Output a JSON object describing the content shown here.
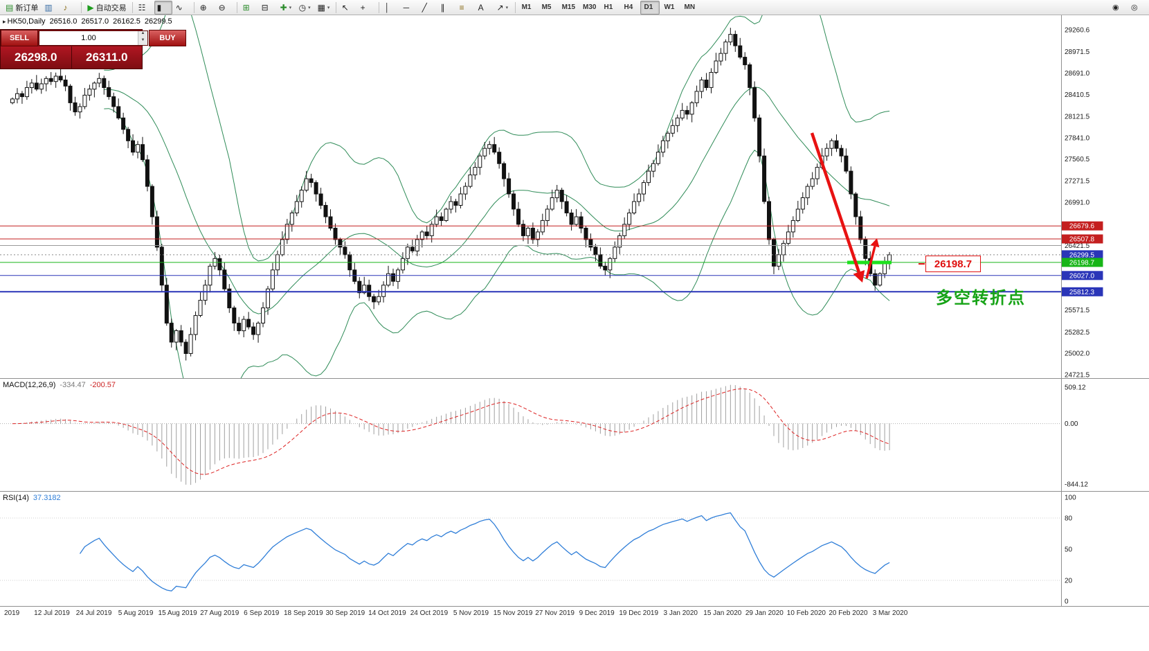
{
  "toolbar": {
    "items": [
      {
        "name": "new-order",
        "glyph": "▤",
        "color": "#2c8c2c",
        "label": "新订单"
      },
      {
        "name": "chart-profiles",
        "glyph": "▥",
        "color": "#3a6ea5"
      },
      {
        "name": "alerts",
        "glyph": "♪",
        "color": "#8a6d1a"
      },
      {
        "type": "sep"
      },
      {
        "name": "auto-trading",
        "glyph": "▶",
        "color": "#1f9d1f",
        "label": "自动交易"
      },
      {
        "type": "sep"
      },
      {
        "name": "bar-chart",
        "glyph": "☷"
      },
      {
        "name": "candlestick-chart",
        "glyph": "▮",
        "active": true
      },
      {
        "name": "line-chart",
        "glyph": "∿"
      },
      {
        "type": "sep"
      },
      {
        "name": "zoom-in",
        "glyph": "⊕"
      },
      {
        "name": "zoom-out",
        "glyph": "⊖"
      },
      {
        "type": "sep"
      },
      {
        "name": "tile-windows",
        "glyph": "⊞",
        "color": "#2c8c2c"
      },
      {
        "name": "cascade-windows",
        "glyph": "⊟"
      },
      {
        "name": "indicators",
        "glyph": "✚",
        "color": "#2c8c2c",
        "dropdown": true
      },
      {
        "name": "periods",
        "glyph": "◷",
        "dropdown": true
      },
      {
        "name": "templates",
        "glyph": "▦",
        "dropdown": true
      },
      {
        "type": "sep"
      },
      {
        "name": "cursor",
        "glyph": "↖"
      },
      {
        "name": "crosshair",
        "glyph": "+"
      },
      {
        "type": "sep"
      },
      {
        "name": "vertical-line",
        "glyph": "│"
      },
      {
        "name": "horizontal-line",
        "glyph": "─"
      },
      {
        "name": "trendline",
        "glyph": "╱"
      },
      {
        "name": "equidistant-channel",
        "glyph": "∥"
      },
      {
        "name": "fibonacci",
        "glyph": "≡",
        "color": "#8a6d1a"
      },
      {
        "name": "text-label",
        "glyph": "A"
      },
      {
        "name": "arrows",
        "glyph": "↗",
        "dropdown": true
      },
      {
        "type": "sep"
      }
    ],
    "timeframes": [
      "M1",
      "M5",
      "M15",
      "M30",
      "H1",
      "H4",
      "D1",
      "W1",
      "MN"
    ],
    "active_timeframe": "D1",
    "right_icons": [
      {
        "name": "user",
        "glyph": "◉"
      },
      {
        "name": "search",
        "glyph": "◎"
      }
    ]
  },
  "chart": {
    "collapse_glyph": "▸",
    "symbol_period": "HK50,Daily",
    "open": "26516.0",
    "high": "26517.0",
    "low": "26162.5",
    "close": "26299.5"
  },
  "trade_panel": {
    "sell_label": "SELL",
    "buy_label": "BUY",
    "volume": "1.00",
    "sell_price": "26298.0",
    "buy_price": "26311.0"
  },
  "price_scale": {
    "labels": [
      "29260.6",
      "28971.5",
      "28691.0",
      "28410.5",
      "28121.5",
      "27841.0",
      "27560.5",
      "27271.5",
      "26991.0",
      "26421.5",
      "25571.5",
      "25282.5",
      "25002.0",
      "24721.5"
    ],
    "badges": [
      {
        "value": "26679.6",
        "bg": "#c41f1f"
      },
      {
        "value": "26507.8",
        "bg": "#c41f1f"
      },
      {
        "value": "26299.5",
        "bg": "#2a35b8"
      },
      {
        "value": "26198.7",
        "bg": "#17b517"
      },
      {
        "value": "26027.0",
        "bg": "#2a35b8"
      },
      {
        "value": "25812.3",
        "bg": "#2a35b8"
      }
    ]
  },
  "levels": [
    {
      "price": 26679.6,
      "color": "#c41f1f",
      "width": 1
    },
    {
      "price": 26507.8,
      "color": "#c41f1f",
      "width": 1
    },
    {
      "price": 26421.5,
      "color": "#9a9a9a",
      "width": 1
    },
    {
      "price": 26299.5,
      "color": "#888888",
      "width": 1,
      "dash": "2 3"
    },
    {
      "price": 26198.7,
      "color": "#17b517",
      "width": 1
    },
    {
      "price": 26027.0,
      "color": "#2a35b8",
      "width": 1
    },
    {
      "price": 25812.3,
      "color": "#2a35b8",
      "width": 2
    }
  ],
  "annotations": {
    "price_flag": "26198.7",
    "turning_point_text": "多空转折点",
    "arrow_color": "#e81212",
    "highlight_color": "#1ee11e"
  },
  "macd_panel": {
    "name": "MACD(12,26,9)",
    "value_main": "-334.47",
    "value_signal": "-200.57",
    "scale_labels": [
      "509.12",
      "0.00",
      "-844.12"
    ]
  },
  "rsi_panel": {
    "name": "RSI(14)",
    "value": "37.3182",
    "scale_labels": [
      "100",
      "80",
      "50",
      "20",
      "0"
    ]
  },
  "chart_data": {
    "type": "candlestick",
    "symbol": "HK50",
    "timeframe": "Daily",
    "title": "HK50,Daily",
    "ohlc_display": {
      "open": 26516.0,
      "high": 26517.0,
      "low": 26162.5,
      "close": 26299.5
    },
    "y_range": [
      24721.5,
      29260.6
    ],
    "closes": [
      28350,
      28420,
      28380,
      28500,
      28560,
      28480,
      28550,
      28620,
      28580,
      28650,
      28600,
      28520,
      28300,
      28180,
      28250,
      28400,
      28480,
      28560,
      28620,
      28500,
      28380,
      28250,
      28100,
      27950,
      27800,
      27650,
      27750,
      27550,
      27200,
      26800,
      26400,
      25900,
      25400,
      25150,
      25300,
      25150,
      25000,
      25250,
      25500,
      25700,
      25900,
      26150,
      26250,
      26100,
      25850,
      25600,
      25400,
      25300,
      25450,
      25350,
      25250,
      25400,
      25600,
      25850,
      26100,
      26300,
      26500,
      26700,
      26850,
      27000,
      27150,
      27300,
      27250,
      27100,
      26950,
      26800,
      26650,
      26500,
      26400,
      26300,
      26100,
      25950,
      25800,
      25900,
      25750,
      25680,
      25750,
      25900,
      26050,
      25950,
      26100,
      26250,
      26400,
      26350,
      26500,
      26600,
      26550,
      26700,
      26800,
      26750,
      26900,
      27000,
      26950,
      27100,
      27200,
      27350,
      27450,
      27600,
      27700,
      27750,
      27650,
      27500,
      27300,
      27100,
      26900,
      26700,
      26550,
      26650,
      26500,
      26600,
      26750,
      26900,
      27050,
      27150,
      27000,
      26850,
      26700,
      26800,
      26650,
      26500,
      26400,
      26300,
      26150,
      26100,
      26250,
      26400,
      26550,
      26700,
      26850,
      27000,
      27100,
      27250,
      27400,
      27500,
      27650,
      27800,
      27900,
      28000,
      28100,
      28200,
      28150,
      28300,
      28450,
      28600,
      28500,
      28700,
      28850,
      28950,
      29100,
      29200,
      29050,
      28900,
      28800,
      28500,
      28100,
      27600,
      27000,
      26500,
      26150,
      26300,
      26450,
      26600,
      26750,
      26900,
      27050,
      27200,
      27300,
      27450,
      27600,
      27700,
      27800,
      27700,
      27600,
      27400,
      27100,
      26800,
      26500,
      26250,
      26050,
      25900,
      26050,
      26200,
      26299.5
    ],
    "indicators": {
      "bollinger": {
        "period": 20,
        "deviation": 2,
        "color": "#2e8b57"
      },
      "macd": {
        "fast": 12,
        "slow": 26,
        "signal": 9,
        "main": -334.47,
        "signal_value": -200.57,
        "scale": [
          509.12,
          0,
          -844.12
        ]
      },
      "rsi": {
        "period": 14,
        "value": 37.3182,
        "scale": [
          100,
          80,
          50,
          20,
          0
        ]
      }
    },
    "x_labels": [
      "2019",
      "12 Jul 2019",
      "24 Jul 2019",
      "5 Aug 2019",
      "15 Aug 2019",
      "27 Aug 2019",
      "6 Sep 2019",
      "18 Sep 2019",
      "30 Sep 2019",
      "14 Oct 2019",
      "24 Oct 2019",
      "5 Nov 2019",
      "15 Nov 2019",
      "27 Nov 2019",
      "9 Dec 2019",
      "19 Dec 2019",
      "3 Jan 2020",
      "15 Jan 2020",
      "29 Jan 2020",
      "10 Feb 2020",
      "20 Feb 2020",
      "3 Mar 2020"
    ]
  }
}
